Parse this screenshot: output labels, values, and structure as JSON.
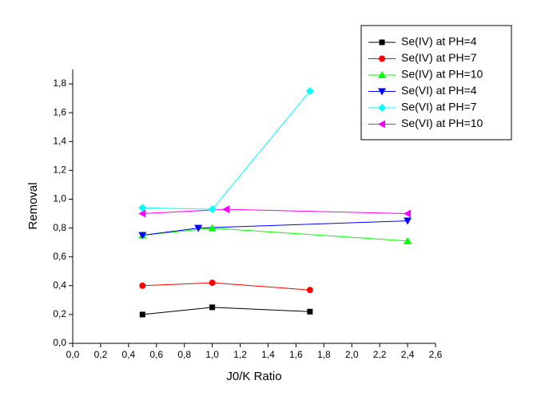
{
  "chart_data": {
    "type": "line",
    "x_label": "J0/K Ratio",
    "y_label": "Removal",
    "xlim": [
      0,
      2.6
    ],
    "ylim": [
      0,
      1.9
    ],
    "xticks": [
      {
        "value": 0,
        "label": "0,0"
      },
      {
        "value": 0.2,
        "label": "0,2"
      },
      {
        "value": 0.4,
        "label": "0,4"
      },
      {
        "value": 0.6,
        "label": "0,6"
      },
      {
        "value": 0.8,
        "label": "0,8"
      },
      {
        "value": 1.0,
        "label": "1,0"
      },
      {
        "value": 1.2,
        "label": "1,2"
      },
      {
        "value": 1.4,
        "label": "1,4"
      },
      {
        "value": 1.6,
        "label": "1,6"
      },
      {
        "value": 1.8,
        "label": "1,8"
      },
      {
        "value": 2.0,
        "label": "2,0"
      },
      {
        "value": 2.2,
        "label": "2,2"
      },
      {
        "value": 2.4,
        "label": "2,4"
      },
      {
        "value": 2.6,
        "label": "2,6"
      }
    ],
    "yticks": [
      {
        "value": 0,
        "label": "0,0"
      },
      {
        "value": 0.2,
        "label": "0,2"
      },
      {
        "value": 0.4,
        "label": "0,4"
      },
      {
        "value": 0.6,
        "label": "0,6"
      },
      {
        "value": 0.8,
        "label": "0,8"
      },
      {
        "value": 1.0,
        "label": "1,0"
      },
      {
        "value": 1.2,
        "label": "1,2"
      },
      {
        "value": 1.4,
        "label": "1,4"
      },
      {
        "value": 1.6,
        "label": "1,6"
      },
      {
        "value": 1.8,
        "label": "1,8"
      }
    ],
    "legend_position": "upper right",
    "series": [
      {
        "name": "Se(IV) at PH=4",
        "color": "#000000",
        "marker": "square",
        "x": [
          0.5,
          1.0,
          1.7
        ],
        "values": [
          0.2,
          0.25,
          0.22
        ]
      },
      {
        "name": "Se(IV) at PH=7",
        "color": "#ff0000",
        "marker": "circle",
        "x": [
          0.5,
          1.0,
          1.7
        ],
        "values": [
          0.4,
          0.42,
          0.37
        ]
      },
      {
        "name": "Se(IV) at PH=10",
        "color": "#00ff00",
        "marker": "triangle-up",
        "x": [
          0.5,
          1.0,
          2.4
        ],
        "values": [
          0.75,
          0.8,
          0.71
        ]
      },
      {
        "name": "Se(VI) at PH=4",
        "color": "#0000ff",
        "marker": "triangle-down",
        "x": [
          0.5,
          0.9,
          2.4
        ],
        "values": [
          0.75,
          0.8,
          0.85
        ]
      },
      {
        "name": "Se(VI) at PH=7",
        "color": "#00ffff",
        "marker": "diamond",
        "x": [
          0.5,
          1.0,
          1.7
        ],
        "values": [
          0.94,
          0.93,
          1.75
        ]
      },
      {
        "name": "Se(VI) at  PH=10",
        "color": "#ff00ff",
        "marker": "triangle-left",
        "x": [
          0.5,
          1.1,
          2.4
        ],
        "values": [
          0.9,
          0.93,
          0.9
        ]
      }
    ]
  }
}
